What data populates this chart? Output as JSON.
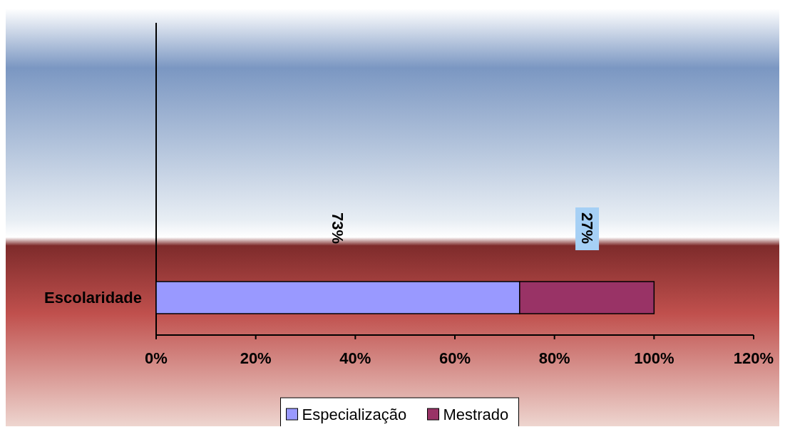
{
  "chart_data": {
    "type": "bar",
    "orientation": "horizontal",
    "stacked": true,
    "categories": [
      "Escolaridade"
    ],
    "series": [
      {
        "name": "Especialização",
        "color": "#9999ff",
        "values": [
          73
        ]
      },
      {
        "name": "Mestrado",
        "color": "#993366",
        "values": [
          27
        ]
      }
    ],
    "xlim": [
      0,
      120
    ],
    "xticks": [
      {
        "value": 0,
        "label": "0%"
      },
      {
        "value": 20,
        "label": "20%"
      },
      {
        "value": 40,
        "label": "40%"
      },
      {
        "value": 60,
        "label": "60%"
      },
      {
        "value": 80,
        "label": "80%"
      },
      {
        "value": 100,
        "label": "100%"
      },
      {
        "value": 120,
        "label": "120%"
      }
    ],
    "value_labels": [
      [
        "73%"
      ],
      [
        "27%"
      ]
    ],
    "legend": "bottom",
    "grid": false
  }
}
